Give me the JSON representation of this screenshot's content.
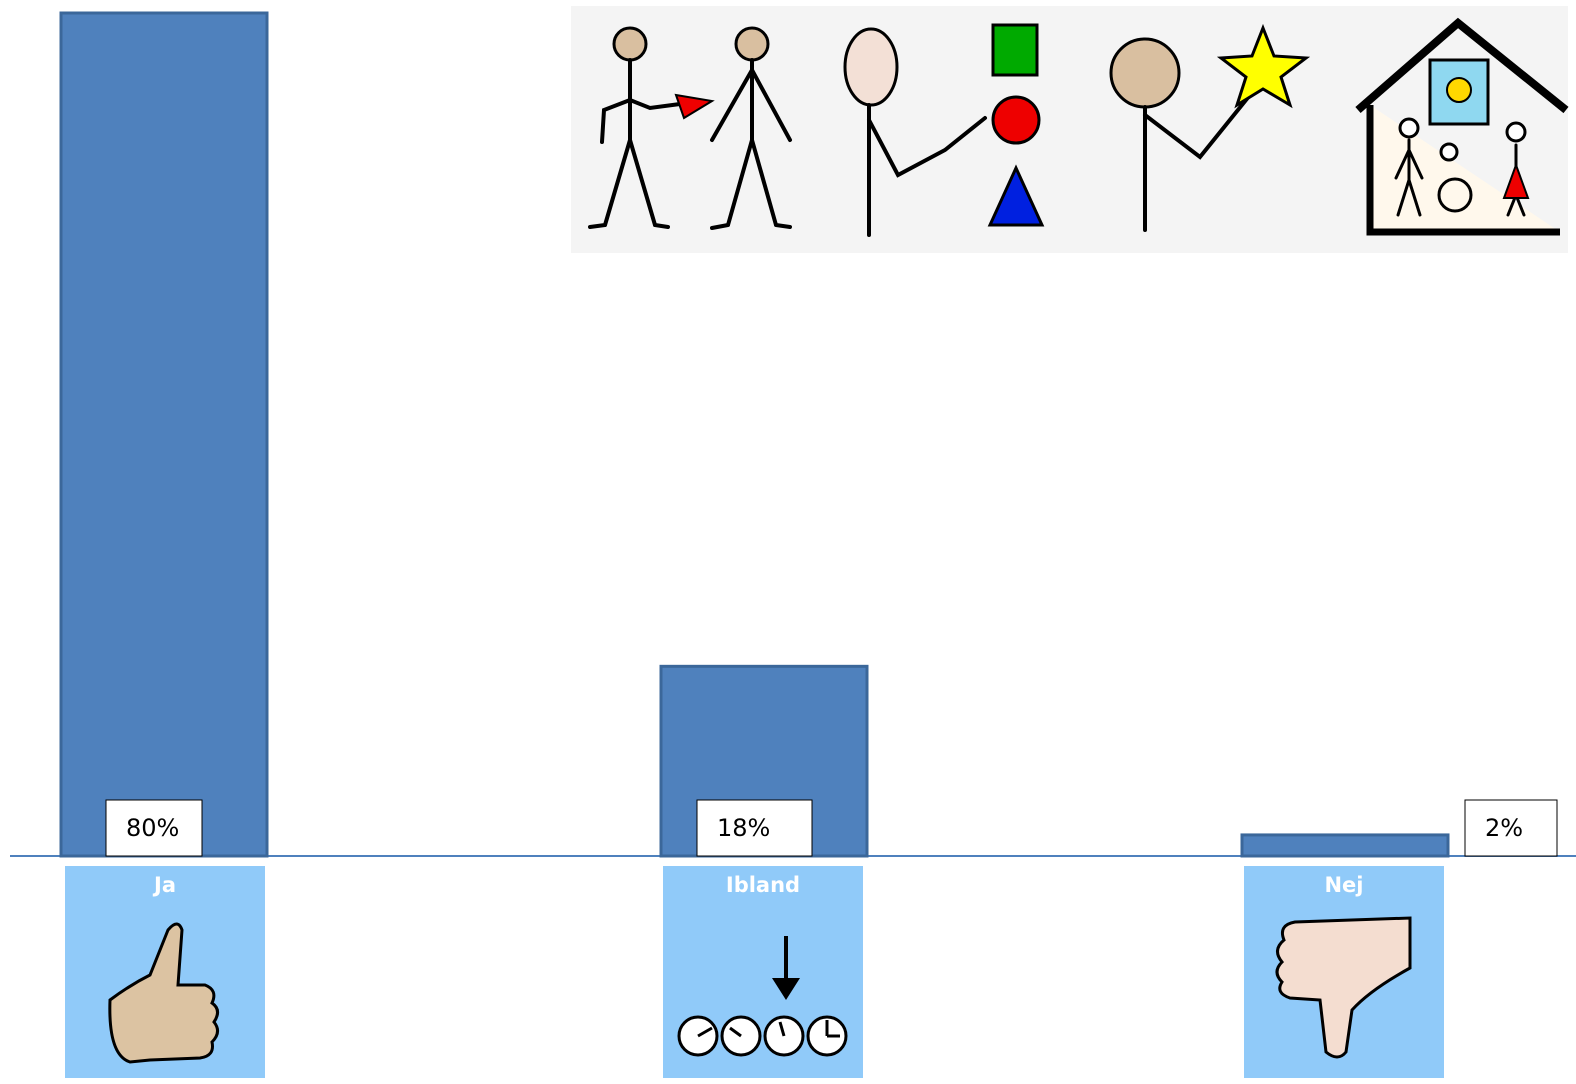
{
  "chart_data": {
    "type": "bar",
    "categories": [
      "Ja",
      "Ibland",
      "Nej"
    ],
    "values": [
      80,
      18,
      2
    ],
    "value_labels": [
      "80%",
      "18%",
      "2%"
    ],
    "color": "#4f81bd"
  }
}
